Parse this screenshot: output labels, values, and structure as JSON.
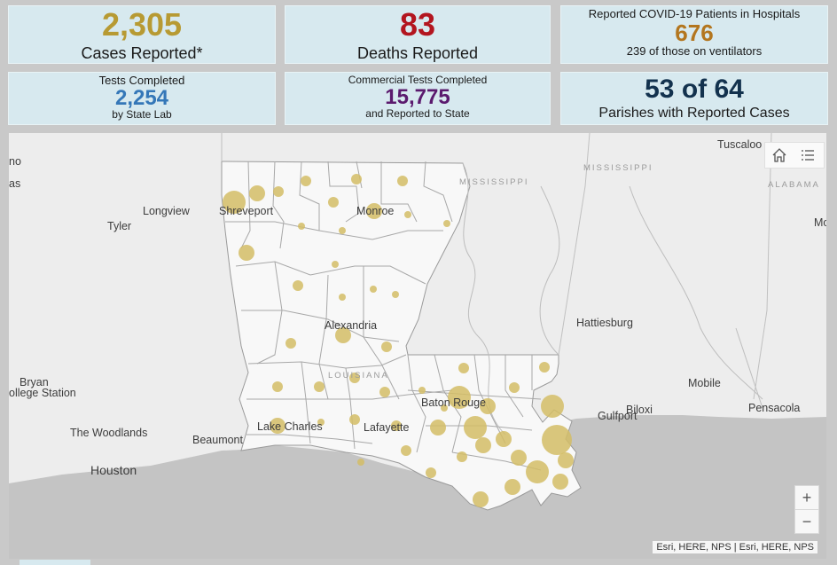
{
  "cards": {
    "cases": {
      "value": "2,305",
      "label": "Cases Reported*",
      "color": "#b79a33"
    },
    "deaths": {
      "value": "83",
      "label": "Deaths Reported",
      "color": "#b3151f"
    },
    "hospital": {
      "title": "Reported COVID-19 Patients in Hospitals",
      "value": "676",
      "sub": "239 of those on ventilators",
      "color": "#b3761f"
    },
    "tests_state": {
      "title": "Tests Completed",
      "value": "2,254",
      "sub": "by State Lab",
      "color": "#3477b8"
    },
    "tests_commercial": {
      "title": "Commercial Tests Completed",
      "value": "15,775",
      "sub": "and Reported to State",
      "color": "#5b1a6e"
    },
    "parishes": {
      "value": "53 of 64",
      "label": "Parishes with Reported Cases",
      "color": "#13324e"
    }
  },
  "map": {
    "labels": {
      "shreveport": "Shreveport",
      "monroe": "Monroe",
      "longview": "Longview",
      "tyler": "Tyler",
      "alexandria": "Alexandria",
      "bryan": "Bryan",
      "college_station": "ollege Station",
      "the_woodlands": "The Woodlands",
      "houston": "Houston",
      "beaumont": "Beaumont",
      "lake_charles": "Lake Charles",
      "lafayette": "Lafayette",
      "baton_rouge": "Baton Rouge",
      "hattiesburg": "Hattiesburg",
      "gulfport": "Gulfport",
      "biloxi": "Biloxi",
      "mobile": "Mobile",
      "pensacola": "Pensacola",
      "tuscaloosa": "Tuscaloo",
      "mo": "Mo",
      "no": "no",
      "as": "as"
    },
    "states": {
      "mississippi_top": "MISSISSIPPI",
      "mississippi_river": "MISSISSIPPI",
      "alabama": "ALABAMA",
      "louisiana": "LOUISIANA"
    },
    "zoom_in": "+",
    "zoom_out": "−",
    "attribution": "Esri, HERE, NPS | Esri, HERE, NPS",
    "bubble_color": "#d4bd66"
  }
}
